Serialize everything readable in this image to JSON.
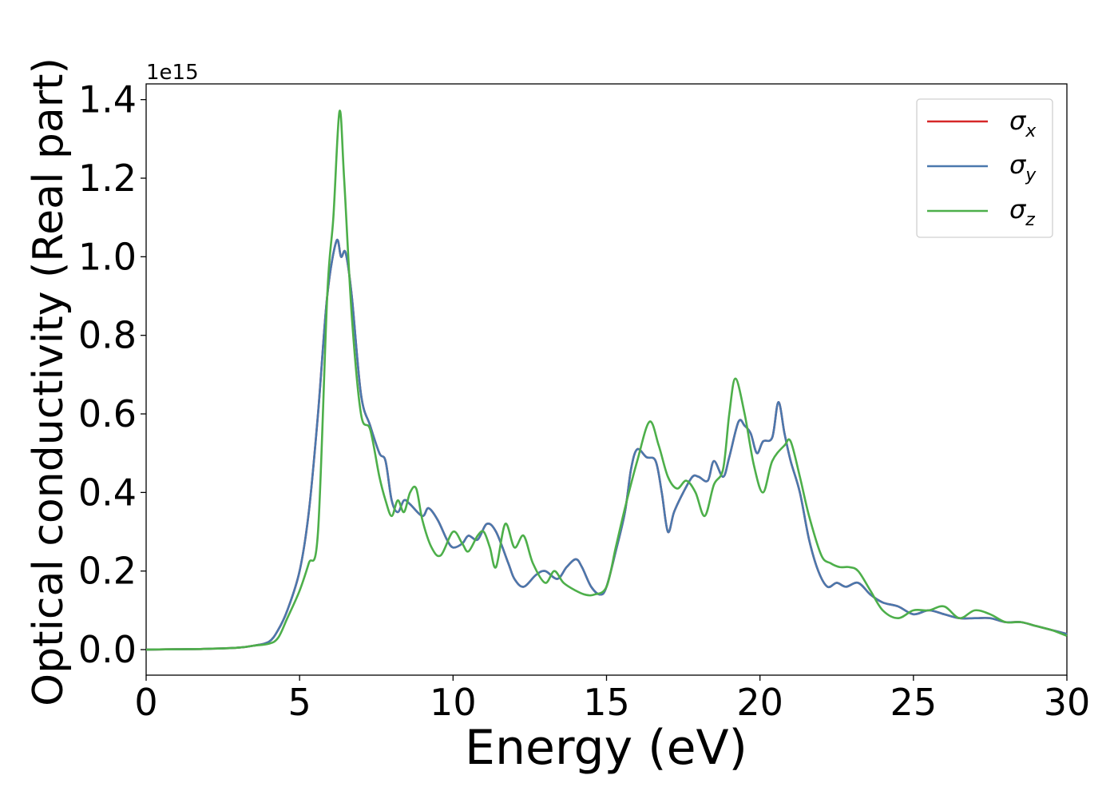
{
  "chart_data": {
    "type": "line",
    "title": "",
    "xlabel": "Energy (eV)",
    "ylabel": "Optical conductivity (Real part)",
    "y_offset_label": "1e15",
    "y_scale": 1000000000000000.0,
    "xlim": [
      0,
      30
    ],
    "ylim": [
      -0.065,
      1.44
    ],
    "xticks": [
      0,
      5,
      10,
      15,
      20,
      25,
      30
    ],
    "yticks": [
      0.0,
      0.2,
      0.4,
      0.6,
      0.8,
      1.0,
      1.2,
      1.4
    ],
    "ytick_labels": [
      "0.0",
      "0.2",
      "0.4",
      "0.6",
      "0.8",
      "1.0",
      "1.2",
      "1.4"
    ],
    "grid": false,
    "legend": {
      "placement": "top-right",
      "entries": [
        {
          "symbol": "σ",
          "sub": "x"
        },
        {
          "symbol": "σ",
          "sub": "y"
        },
        {
          "symbol": "σ",
          "sub": "z"
        }
      ]
    },
    "series": [
      {
        "color": "#d62728",
        "x": [
          0,
          1,
          2,
          3,
          3.5,
          4,
          4.3,
          4.6,
          5,
          5.3,
          5.6,
          5.9,
          6.2,
          6.35,
          6.5,
          6.7,
          7.0,
          7.3,
          7.6,
          7.8,
          8.0,
          8.2,
          8.4,
          8.6,
          9.0,
          9.2,
          9.5,
          9.8,
          10.0,
          10.3,
          10.5,
          10.8,
          11.1,
          11.4,
          11.8,
          12.0,
          12.3,
          12.7,
          13.0,
          13.4,
          13.7,
          14.0,
          14.2,
          14.5,
          14.8,
          15.0,
          15.3,
          15.6,
          15.8,
          16.0,
          16.3,
          16.6,
          16.8,
          17.0,
          17.2,
          17.5,
          17.8,
          18.0,
          18.3,
          18.5,
          18.8,
          19.0,
          19.3,
          19.5,
          19.7,
          19.9,
          20.1,
          20.4,
          20.6,
          20.8,
          21.0,
          21.3,
          21.6,
          21.9,
          22.2,
          22.5,
          22.8,
          23.2,
          23.6,
          24.0,
          24.5,
          25.0,
          25.5,
          26.0,
          26.5,
          27.0,
          27.5,
          28.0,
          28.5,
          29.0,
          29.5,
          30.0
        ],
        "values": [
          0,
          0.001,
          0.002,
          0.005,
          0.01,
          0.02,
          0.05,
          0.1,
          0.2,
          0.35,
          0.6,
          0.9,
          1.04,
          1.0,
          1.01,
          0.9,
          0.65,
          0.57,
          0.5,
          0.48,
          0.38,
          0.35,
          0.38,
          0.37,
          0.34,
          0.36,
          0.33,
          0.28,
          0.26,
          0.27,
          0.29,
          0.28,
          0.32,
          0.3,
          0.22,
          0.18,
          0.16,
          0.19,
          0.2,
          0.18,
          0.21,
          0.23,
          0.21,
          0.16,
          0.14,
          0.16,
          0.25,
          0.35,
          0.46,
          0.51,
          0.49,
          0.48,
          0.4,
          0.3,
          0.35,
          0.4,
          0.44,
          0.44,
          0.43,
          0.48,
          0.44,
          0.49,
          0.58,
          0.57,
          0.55,
          0.5,
          0.53,
          0.54,
          0.63,
          0.55,
          0.48,
          0.4,
          0.28,
          0.2,
          0.16,
          0.17,
          0.16,
          0.17,
          0.14,
          0.12,
          0.11,
          0.09,
          0.1,
          0.09,
          0.08,
          0.08,
          0.08,
          0.07,
          0.07,
          0.06,
          0.05,
          0.04
        ]
      },
      {
        "color": "#4a78ad",
        "x": [
          0,
          1,
          2,
          3,
          3.5,
          4,
          4.3,
          4.6,
          5,
          5.3,
          5.6,
          5.9,
          6.2,
          6.35,
          6.5,
          6.7,
          7.0,
          7.3,
          7.6,
          7.8,
          8.0,
          8.2,
          8.4,
          8.6,
          9.0,
          9.2,
          9.5,
          9.8,
          10.0,
          10.3,
          10.5,
          10.8,
          11.1,
          11.4,
          11.8,
          12.0,
          12.3,
          12.7,
          13.0,
          13.4,
          13.7,
          14.0,
          14.2,
          14.5,
          14.8,
          15.0,
          15.3,
          15.6,
          15.8,
          16.0,
          16.3,
          16.6,
          16.8,
          17.0,
          17.2,
          17.5,
          17.8,
          18.0,
          18.3,
          18.5,
          18.8,
          19.0,
          19.3,
          19.5,
          19.7,
          19.9,
          20.1,
          20.4,
          20.6,
          20.8,
          21.0,
          21.3,
          21.6,
          21.9,
          22.2,
          22.5,
          22.8,
          23.2,
          23.6,
          24.0,
          24.5,
          25.0,
          25.5,
          26.0,
          26.5,
          27.0,
          27.5,
          28.0,
          28.5,
          29.0,
          29.5,
          30.0
        ],
        "values": [
          0,
          0.001,
          0.002,
          0.005,
          0.01,
          0.02,
          0.05,
          0.1,
          0.2,
          0.35,
          0.6,
          0.9,
          1.04,
          1.0,
          1.01,
          0.9,
          0.65,
          0.57,
          0.5,
          0.48,
          0.38,
          0.35,
          0.38,
          0.37,
          0.34,
          0.36,
          0.33,
          0.28,
          0.26,
          0.27,
          0.29,
          0.28,
          0.32,
          0.3,
          0.22,
          0.18,
          0.16,
          0.19,
          0.2,
          0.18,
          0.21,
          0.23,
          0.21,
          0.16,
          0.14,
          0.16,
          0.25,
          0.35,
          0.46,
          0.51,
          0.49,
          0.48,
          0.4,
          0.3,
          0.35,
          0.4,
          0.44,
          0.44,
          0.43,
          0.48,
          0.44,
          0.49,
          0.58,
          0.57,
          0.55,
          0.5,
          0.53,
          0.54,
          0.63,
          0.55,
          0.48,
          0.4,
          0.28,
          0.2,
          0.16,
          0.17,
          0.16,
          0.17,
          0.14,
          0.12,
          0.11,
          0.09,
          0.1,
          0.09,
          0.08,
          0.08,
          0.08,
          0.07,
          0.07,
          0.06,
          0.05,
          0.04
        ]
      },
      {
        "color": "#4daf4a",
        "x": [
          0,
          1,
          2,
          3,
          3.5,
          4,
          4.3,
          4.6,
          5,
          5.3,
          5.6,
          5.9,
          6.1,
          6.3,
          6.45,
          6.7,
          7.0,
          7.3,
          7.6,
          7.8,
          8.0,
          8.2,
          8.4,
          8.6,
          8.8,
          9.0,
          9.3,
          9.6,
          10.0,
          10.3,
          10.5,
          10.8,
          11.0,
          11.2,
          11.4,
          11.7,
          12.0,
          12.3,
          12.6,
          13.0,
          13.3,
          13.6,
          14.0,
          14.3,
          14.6,
          15.0,
          15.3,
          15.6,
          16.0,
          16.4,
          16.7,
          17.0,
          17.3,
          17.6,
          17.9,
          18.2,
          18.5,
          18.8,
          19.0,
          19.2,
          19.5,
          19.8,
          20.1,
          20.4,
          20.8,
          21.0,
          21.3,
          21.6,
          22.0,
          22.3,
          22.6,
          22.9,
          23.2,
          23.6,
          24.0,
          24.5,
          25.0,
          25.5,
          26.0,
          26.5,
          27.0,
          27.5,
          28.0,
          28.5,
          29.0,
          29.5,
          30.0
        ],
        "values": [
          0,
          0.001,
          0.002,
          0.005,
          0.01,
          0.015,
          0.03,
          0.08,
          0.15,
          0.22,
          0.3,
          0.9,
          1.1,
          1.37,
          1.2,
          0.85,
          0.6,
          0.56,
          0.44,
          0.38,
          0.34,
          0.38,
          0.35,
          0.4,
          0.41,
          0.33,
          0.26,
          0.24,
          0.3,
          0.27,
          0.25,
          0.29,
          0.3,
          0.26,
          0.21,
          0.32,
          0.26,
          0.29,
          0.22,
          0.17,
          0.2,
          0.17,
          0.15,
          0.14,
          0.14,
          0.16,
          0.26,
          0.36,
          0.48,
          0.58,
          0.52,
          0.44,
          0.41,
          0.43,
          0.4,
          0.34,
          0.42,
          0.46,
          0.6,
          0.69,
          0.6,
          0.47,
          0.4,
          0.48,
          0.52,
          0.53,
          0.44,
          0.34,
          0.24,
          0.22,
          0.21,
          0.21,
          0.2,
          0.15,
          0.1,
          0.08,
          0.1,
          0.1,
          0.11,
          0.08,
          0.1,
          0.09,
          0.07,
          0.07,
          0.06,
          0.05,
          0.035
        ]
      }
    ]
  }
}
